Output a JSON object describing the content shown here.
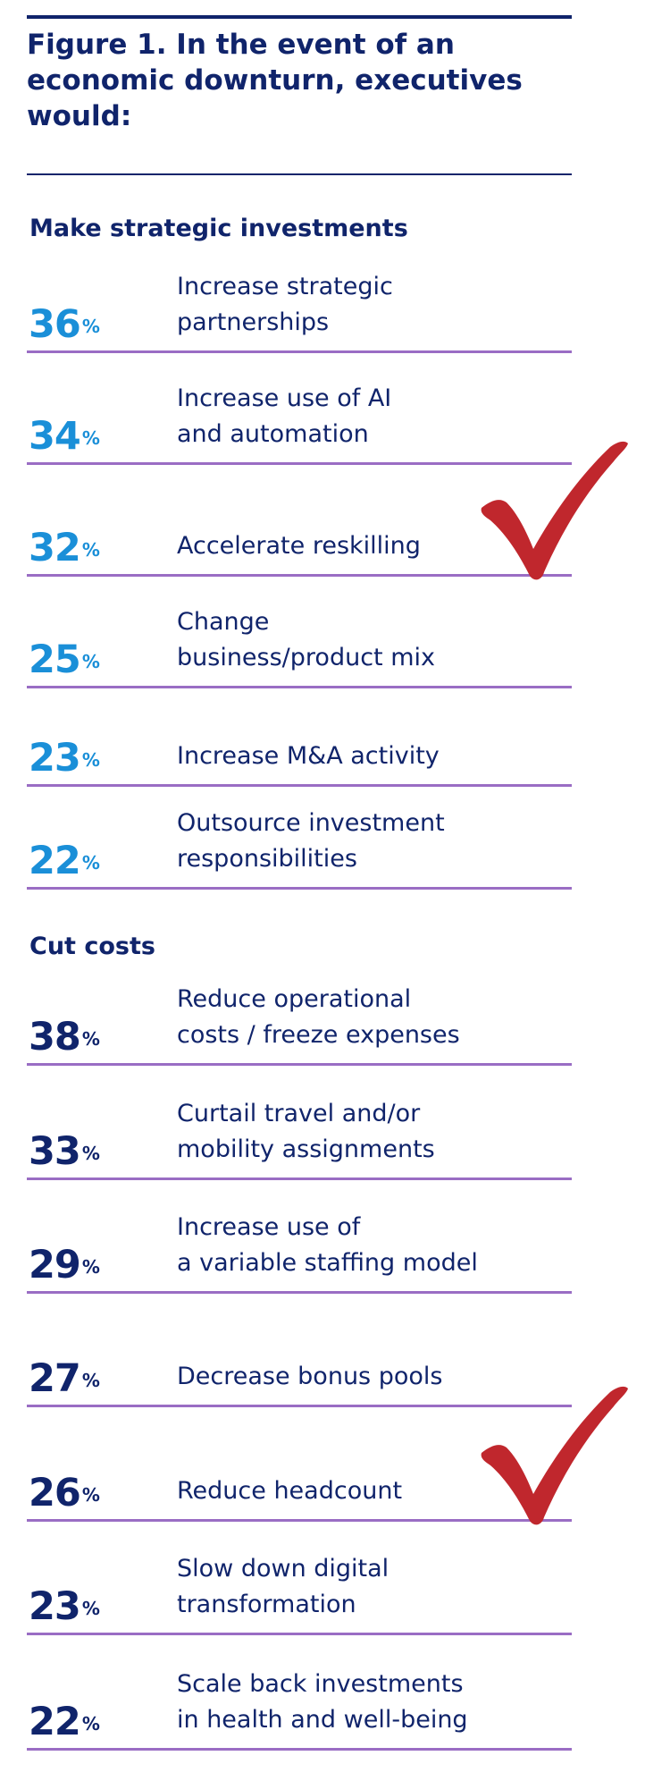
{
  "title": "Figure 1. In the event of an economic downturn, executives would:",
  "colors": {
    "navy": "#10246b",
    "strategic_blue": "#1a8fd8",
    "row_rule": "#9a6dc4",
    "check_red": "#c0272d"
  },
  "icons": [
    "checkmark-icon"
  ],
  "chart_data": [
    {
      "type": "table",
      "title": "Make strategic investments",
      "unit": "%",
      "rows": [
        {
          "value": 36,
          "label": [
            "Increase strategic",
            "partnerships"
          ]
        },
        {
          "value": 34,
          "label": [
            "Increase use of AI",
            "and automation"
          ]
        },
        {
          "value": 32,
          "label": [
            "Accelerate reskilling"
          ],
          "checked": true
        },
        {
          "value": 25,
          "label": [
            "Change",
            "business/product mix"
          ]
        },
        {
          "value": 23,
          "label": [
            "Increase M&A activity"
          ]
        },
        {
          "value": 22,
          "label": [
            "Outsource investment",
            "responsibilities"
          ]
        }
      ]
    },
    {
      "type": "table",
      "title": "Cut costs",
      "unit": "%",
      "rows": [
        {
          "value": 38,
          "label": [
            "Reduce operational",
            "costs / freeze expenses"
          ]
        },
        {
          "value": 33,
          "label": [
            "Curtail travel and/or",
            "mobility assignments"
          ]
        },
        {
          "value": 29,
          "label": [
            "Increase use of",
            "a variable staffing model"
          ]
        },
        {
          "value": 27,
          "label": [
            "Decrease bonus pools"
          ]
        },
        {
          "value": 26,
          "label": [
            "Reduce headcount"
          ],
          "checked": true
        },
        {
          "value": 23,
          "label": [
            "Slow down digital",
            "transformation"
          ]
        },
        {
          "value": 22,
          "label": [
            "Scale back investments",
            "in health and well-being"
          ]
        }
      ]
    }
  ]
}
